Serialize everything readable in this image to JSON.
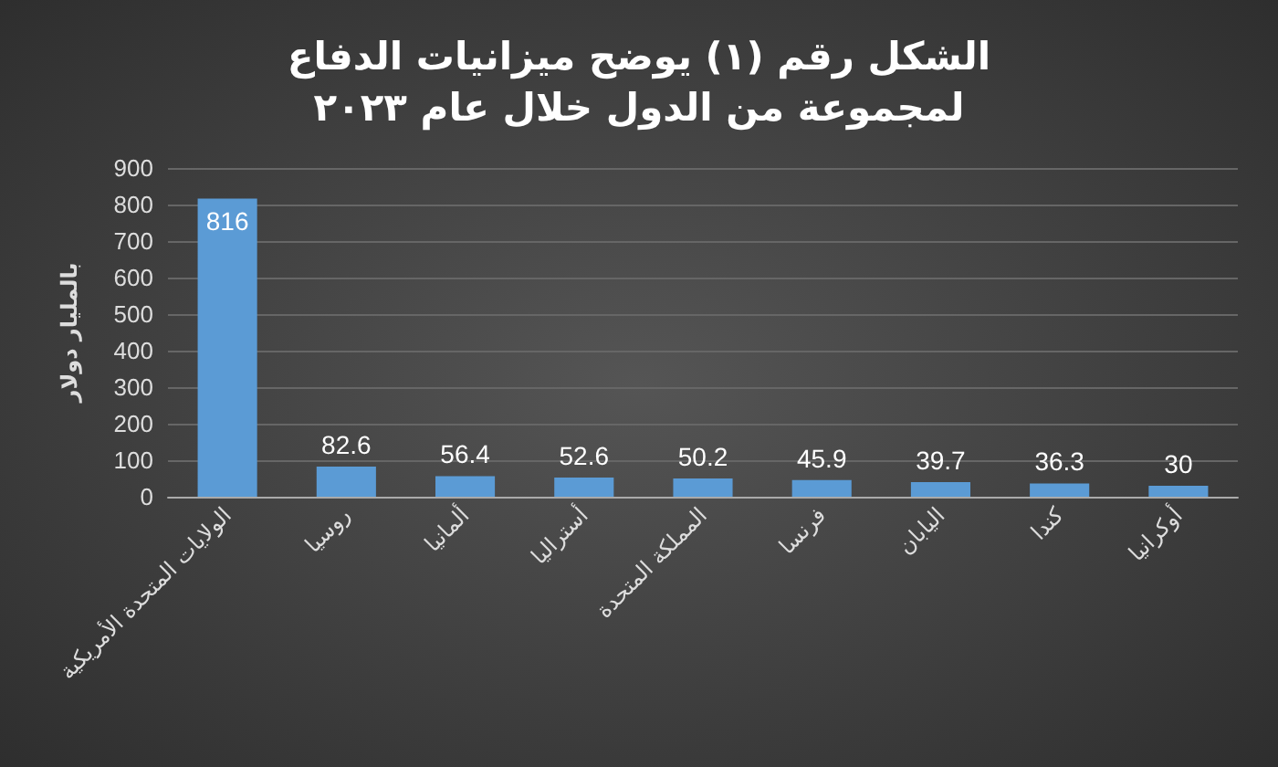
{
  "chart_data": {
    "type": "bar",
    "title": "الشكل رقم (١) يوضح ميزانيات الدفاع\nلمجموعة من الدول خلال عام ٢٠٢٣",
    "ylabel": "بالمليار دولار",
    "categories": [
      "الولايات المتحدة الأمريكية",
      "روسيا",
      "ألمانيا",
      "أستراليا",
      "المملكة المتحدة",
      "فرنسا",
      "اليابان",
      "كندا",
      "أوكرانيا"
    ],
    "values": [
      816,
      82.6,
      56.4,
      52.6,
      50.2,
      45.9,
      39.7,
      36.3,
      30
    ],
    "color": "#5b9bd5",
    "ylim": [
      0,
      900
    ],
    "yticks": [
      0,
      100,
      200,
      300,
      400,
      500,
      600,
      700,
      800,
      900
    ],
    "grid": "y",
    "data_labels": true
  }
}
